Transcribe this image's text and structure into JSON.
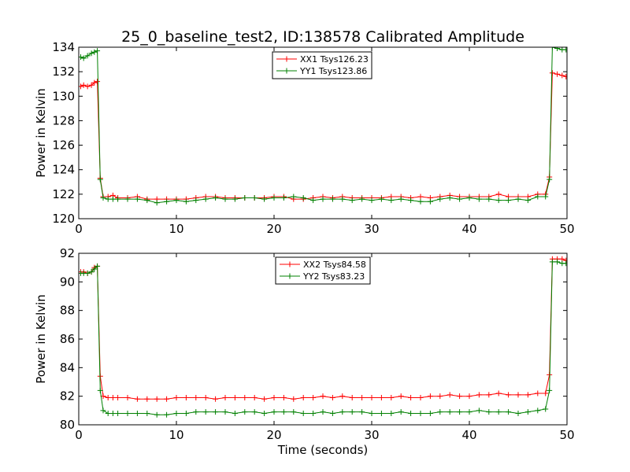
{
  "figure": {
    "title": "25_0_baseline_test2, ID:138578 Calibrated Amplitude"
  },
  "chart_data": [
    {
      "type": "line",
      "title": "25_0_baseline_test2, ID:138578 Calibrated Amplitude",
      "xlabel": "",
      "ylabel": "Power in Kelvin",
      "xlim": [
        0,
        50
      ],
      "ylim": [
        120,
        134
      ],
      "xticks": [
        "0",
        "10",
        "20",
        "30",
        "40",
        "50"
      ],
      "yticks": [
        "120",
        "122",
        "124",
        "126",
        "128",
        "130",
        "132",
        "134"
      ],
      "legend_position": "top-center",
      "grid": false,
      "series": [
        {
          "name": "XX1 Tsys126.23",
          "color": "#ff0000",
          "points": [
            [
              0.2,
              130.8
            ],
            [
              0.5,
              130.9
            ],
            [
              0.9,
              130.8
            ],
            [
              1.3,
              130.9
            ],
            [
              1.6,
              131.1
            ],
            [
              1.9,
              131.2
            ],
            [
              2.2,
              123.3
            ],
            [
              2.5,
              121.8
            ],
            [
              3.0,
              121.8
            ],
            [
              3.5,
              121.9
            ],
            [
              4,
              121.7
            ],
            [
              5,
              121.7
            ],
            [
              6,
              121.8
            ],
            [
              7,
              121.6
            ],
            [
              8,
              121.6
            ],
            [
              9,
              121.6
            ],
            [
              10,
              121.6
            ],
            [
              11,
              121.6
            ],
            [
              12,
              121.7
            ],
            [
              13,
              121.8
            ],
            [
              14,
              121.8
            ],
            [
              15,
              121.7
            ],
            [
              16,
              121.7
            ],
            [
              17,
              121.7
            ],
            [
              18,
              121.7
            ],
            [
              19,
              121.7
            ],
            [
              20,
              121.8
            ],
            [
              21,
              121.8
            ],
            [
              22,
              121.6
            ],
            [
              23,
              121.6
            ],
            [
              24,
              121.7
            ],
            [
              25,
              121.8
            ],
            [
              26,
              121.7
            ],
            [
              27,
              121.8
            ],
            [
              28,
              121.7
            ],
            [
              29,
              121.7
            ],
            [
              30,
              121.7
            ],
            [
              31,
              121.7
            ],
            [
              32,
              121.8
            ],
            [
              33,
              121.8
            ],
            [
              34,
              121.7
            ],
            [
              35,
              121.8
            ],
            [
              36,
              121.7
            ],
            [
              37,
              121.8
            ],
            [
              38,
              121.9
            ],
            [
              39,
              121.8
            ],
            [
              40,
              121.8
            ],
            [
              41,
              121.8
            ],
            [
              42,
              121.8
            ],
            [
              43,
              122.0
            ],
            [
              44,
              121.8
            ],
            [
              45,
              121.8
            ],
            [
              46,
              121.8
            ],
            [
              47,
              122.0
            ],
            [
              47.8,
              122.0
            ],
            [
              48.2,
              123.4
            ],
            [
              48.5,
              131.9
            ],
            [
              49.0,
              131.8
            ],
            [
              49.5,
              131.7
            ],
            [
              49.9,
              131.6
            ]
          ]
        },
        {
          "name": "YY1 Tsys123.86",
          "color": "#008000",
          "points": [
            [
              0.2,
              133.2
            ],
            [
              0.5,
              133.1
            ],
            [
              0.9,
              133.3
            ],
            [
              1.3,
              133.5
            ],
            [
              1.6,
              133.6
            ],
            [
              1.9,
              133.7
            ],
            [
              2.2,
              123.2
            ],
            [
              2.5,
              121.7
            ],
            [
              3.0,
              121.6
            ],
            [
              3.5,
              121.6
            ],
            [
              4,
              121.6
            ],
            [
              5,
              121.6
            ],
            [
              6,
              121.6
            ],
            [
              7,
              121.5
            ],
            [
              8,
              121.3
            ],
            [
              9,
              121.4
            ],
            [
              10,
              121.5
            ],
            [
              11,
              121.4
            ],
            [
              12,
              121.5
            ],
            [
              13,
              121.6
            ],
            [
              14,
              121.7
            ],
            [
              15,
              121.6
            ],
            [
              16,
              121.6
            ],
            [
              17,
              121.7
            ],
            [
              18,
              121.7
            ],
            [
              19,
              121.6
            ],
            [
              20,
              121.7
            ],
            [
              21,
              121.7
            ],
            [
              22,
              121.8
            ],
            [
              23,
              121.7
            ],
            [
              24,
              121.5
            ],
            [
              25,
              121.6
            ],
            [
              26,
              121.6
            ],
            [
              27,
              121.6
            ],
            [
              28,
              121.5
            ],
            [
              29,
              121.6
            ],
            [
              30,
              121.5
            ],
            [
              31,
              121.6
            ],
            [
              32,
              121.5
            ],
            [
              33,
              121.6
            ],
            [
              34,
              121.5
            ],
            [
              35,
              121.4
            ],
            [
              36,
              121.4
            ],
            [
              37,
              121.6
            ],
            [
              38,
              121.7
            ],
            [
              39,
              121.6
            ],
            [
              40,
              121.7
            ],
            [
              41,
              121.6
            ],
            [
              42,
              121.6
            ],
            [
              43,
              121.5
            ],
            [
              44,
              121.5
            ],
            [
              45,
              121.6
            ],
            [
              46,
              121.5
            ],
            [
              47,
              121.8
            ],
            [
              47.8,
              121.8
            ],
            [
              48.2,
              123.2
            ],
            [
              48.5,
              134.0
            ],
            [
              49.0,
              133.9
            ],
            [
              49.5,
              133.8
            ],
            [
              49.9,
              133.8
            ]
          ]
        }
      ]
    },
    {
      "type": "line",
      "title": "",
      "xlabel": "Time (seconds)",
      "ylabel": "Power in Kelvin",
      "xlim": [
        0,
        50
      ],
      "ylim": [
        80,
        92
      ],
      "xticks": [
        "0",
        "10",
        "20",
        "30",
        "40",
        "50"
      ],
      "yticks": [
        "80",
        "82",
        "84",
        "86",
        "88",
        "90",
        "92"
      ],
      "legend_position": "top-center",
      "grid": false,
      "series": [
        {
          "name": "XX2 Tsys84.58",
          "color": "#ff0000",
          "points": [
            [
              0.2,
              90.7
            ],
            [
              0.5,
              90.7
            ],
            [
              0.9,
              90.6
            ],
            [
              1.3,
              90.7
            ],
            [
              1.6,
              91.0
            ],
            [
              1.9,
              91.1
            ],
            [
              2.2,
              83.4
            ],
            [
              2.5,
              82.0
            ],
            [
              3.0,
              81.9
            ],
            [
              3.5,
              81.9
            ],
            [
              4,
              81.9
            ],
            [
              5,
              81.9
            ],
            [
              6,
              81.8
            ],
            [
              7,
              81.8
            ],
            [
              8,
              81.8
            ],
            [
              9,
              81.8
            ],
            [
              10,
              81.9
            ],
            [
              11,
              81.9
            ],
            [
              12,
              81.9
            ],
            [
              13,
              81.9
            ],
            [
              14,
              81.8
            ],
            [
              15,
              81.9
            ],
            [
              16,
              81.9
            ],
            [
              17,
              81.9
            ],
            [
              18,
              81.9
            ],
            [
              19,
              81.8
            ],
            [
              20,
              81.9
            ],
            [
              21,
              81.9
            ],
            [
              22,
              81.8
            ],
            [
              23,
              81.9
            ],
            [
              24,
              81.9
            ],
            [
              25,
              82.0
            ],
            [
              26,
              81.9
            ],
            [
              27,
              82.0
            ],
            [
              28,
              81.9
            ],
            [
              29,
              81.9
            ],
            [
              30,
              81.9
            ],
            [
              31,
              81.9
            ],
            [
              32,
              81.9
            ],
            [
              33,
              82.0
            ],
            [
              34,
              81.9
            ],
            [
              35,
              81.9
            ],
            [
              36,
              82.0
            ],
            [
              37,
              82.0
            ],
            [
              38,
              82.1
            ],
            [
              39,
              82.0
            ],
            [
              40,
              82.0
            ],
            [
              41,
              82.1
            ],
            [
              42,
              82.1
            ],
            [
              43,
              82.2
            ],
            [
              44,
              82.1
            ],
            [
              45,
              82.1
            ],
            [
              46,
              82.1
            ],
            [
              47,
              82.2
            ],
            [
              47.8,
              82.2
            ],
            [
              48.2,
              83.5
            ],
            [
              48.5,
              91.6
            ],
            [
              49.0,
              91.6
            ],
            [
              49.5,
              91.6
            ],
            [
              49.9,
              91.5
            ]
          ]
        },
        {
          "name": "YY2 Tsys83.23",
          "color": "#008000",
          "points": [
            [
              0.2,
              90.6
            ],
            [
              0.5,
              90.6
            ],
            [
              0.9,
              90.6
            ],
            [
              1.3,
              90.7
            ],
            [
              1.6,
              90.9
            ],
            [
              1.9,
              91.1
            ],
            [
              2.2,
              82.4
            ],
            [
              2.5,
              81.0
            ],
            [
              3.0,
              80.8
            ],
            [
              3.5,
              80.8
            ],
            [
              4,
              80.8
            ],
            [
              5,
              80.8
            ],
            [
              6,
              80.8
            ],
            [
              7,
              80.8
            ],
            [
              8,
              80.7
            ],
            [
              9,
              80.7
            ],
            [
              10,
              80.8
            ],
            [
              11,
              80.8
            ],
            [
              12,
              80.9
            ],
            [
              13,
              80.9
            ],
            [
              14,
              80.9
            ],
            [
              15,
              80.9
            ],
            [
              16,
              80.8
            ],
            [
              17,
              80.9
            ],
            [
              18,
              80.9
            ],
            [
              19,
              80.8
            ],
            [
              20,
              80.9
            ],
            [
              21,
              80.9
            ],
            [
              22,
              80.9
            ],
            [
              23,
              80.8
            ],
            [
              24,
              80.8
            ],
            [
              25,
              80.9
            ],
            [
              26,
              80.8
            ],
            [
              27,
              80.9
            ],
            [
              28,
              80.9
            ],
            [
              29,
              80.9
            ],
            [
              30,
              80.8
            ],
            [
              31,
              80.8
            ],
            [
              32,
              80.8
            ],
            [
              33,
              80.9
            ],
            [
              34,
              80.8
            ],
            [
              35,
              80.8
            ],
            [
              36,
              80.8
            ],
            [
              37,
              80.9
            ],
            [
              38,
              80.9
            ],
            [
              39,
              80.9
            ],
            [
              40,
              80.9
            ],
            [
              41,
              81.0
            ],
            [
              42,
              80.9
            ],
            [
              43,
              80.9
            ],
            [
              44,
              80.9
            ],
            [
              45,
              80.8
            ],
            [
              46,
              80.9
            ],
            [
              47,
              81.0
            ],
            [
              47.8,
              81.1
            ],
            [
              48.2,
              82.4
            ],
            [
              48.5,
              91.4
            ],
            [
              49.0,
              91.4
            ],
            [
              49.5,
              91.3
            ],
            [
              49.9,
              91.3
            ]
          ]
        }
      ]
    }
  ]
}
